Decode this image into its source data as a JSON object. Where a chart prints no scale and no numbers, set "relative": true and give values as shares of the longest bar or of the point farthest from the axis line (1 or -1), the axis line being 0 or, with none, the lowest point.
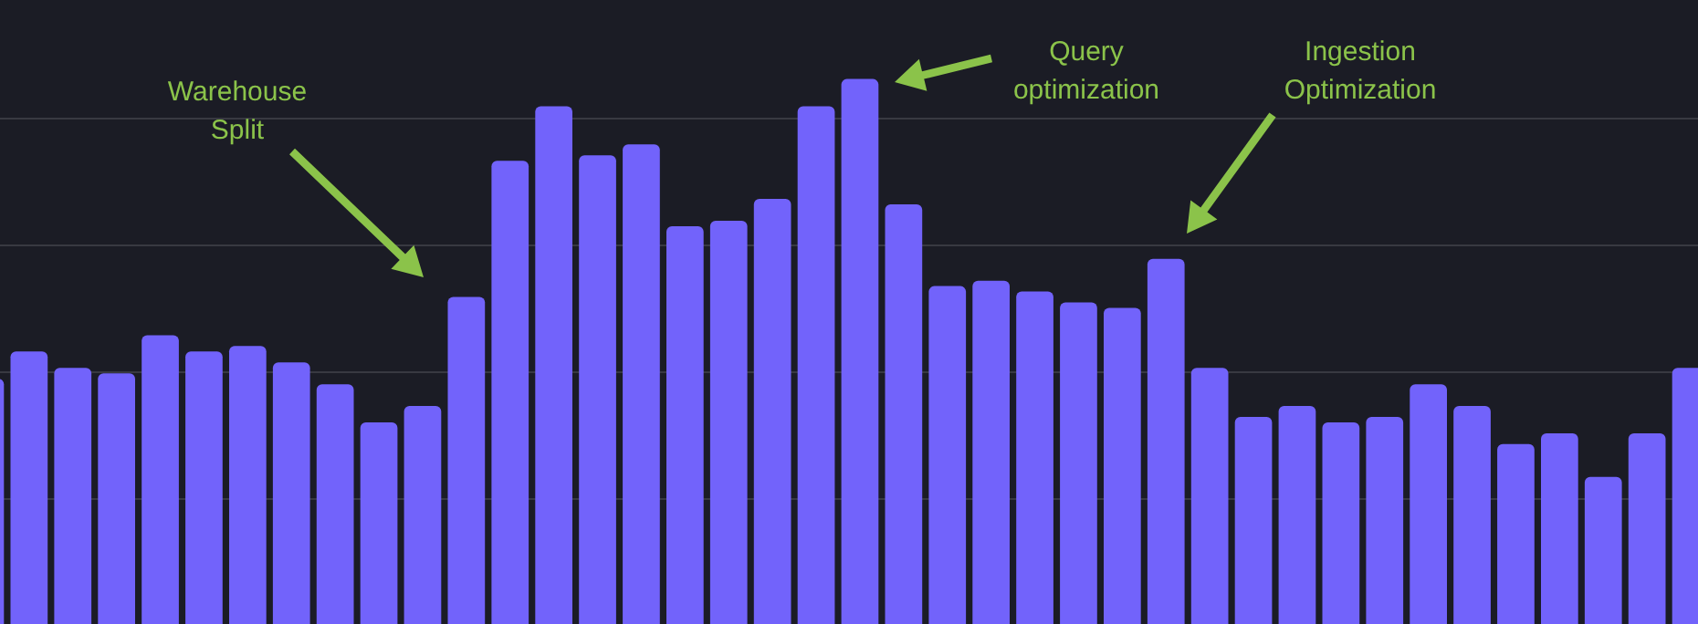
{
  "chart_data": {
    "type": "bar",
    "relative": true,
    "grid": "y",
    "legend": false,
    "tick_labels": false,
    "categories": [
      null,
      null,
      null,
      null,
      null,
      null,
      null,
      null,
      null,
      null,
      null,
      null,
      null,
      null,
      null,
      null,
      null,
      null,
      null,
      null,
      null,
      null,
      null,
      null,
      null,
      null,
      null,
      null,
      null,
      null,
      null,
      null,
      null,
      null,
      null,
      null,
      null,
      null,
      null,
      null
    ],
    "series": [
      {
        "color": "#7263fb",
        "values": [
          0.45,
          0.5,
          0.47,
          0.46,
          0.53,
          0.5,
          0.51,
          0.48,
          0.44,
          0.37,
          0.4,
          0.6,
          0.85,
          0.95,
          0.86,
          0.88,
          0.73,
          0.74,
          0.78,
          0.95,
          1,
          0.77,
          0.62,
          0.63,
          0.61,
          0.59,
          0.58,
          0.67,
          0.47,
          0.38,
          0.4,
          0.37,
          0.38,
          0.44,
          0.4,
          0.33,
          0.35,
          0.27,
          0.35,
          0.47
        ]
      }
    ],
    "annotations": [
      "Warehouse\nSplit",
      "Query\noptimization",
      "Ingestion\nOptimization"
    ]
  }
}
